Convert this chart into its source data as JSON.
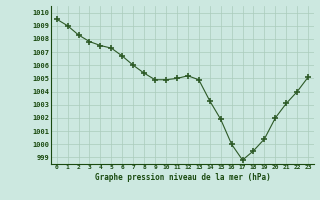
{
  "x": [
    0,
    1,
    2,
    3,
    4,
    5,
    6,
    7,
    8,
    9,
    10,
    11,
    12,
    13,
    14,
    15,
    16,
    17,
    18,
    19,
    20,
    21,
    22,
    23
  ],
  "y": [
    1009.5,
    1009.0,
    1008.3,
    1007.8,
    1007.5,
    1007.3,
    1006.7,
    1006.0,
    1005.4,
    1004.9,
    1004.9,
    1005.0,
    1005.2,
    1004.9,
    1003.3,
    1001.9,
    1000.0,
    998.8,
    999.5,
    1000.4,
    1002.0,
    1003.1,
    1004.0,
    1005.1
  ],
  "line_color": "#2d5a27",
  "marker": "+",
  "marker_size": 4,
  "bg_color": "#cce8e0",
  "grid_color": "#aaccbb",
  "xlabel": "Graphe pression niveau de la mer (hPa)",
  "xlabel_color": "#1a4a10",
  "tick_color": "#1a4a10",
  "ylabel_ticks": [
    999,
    1000,
    1001,
    1002,
    1003,
    1004,
    1005,
    1006,
    1007,
    1008,
    1009,
    1010
  ],
  "ylim": [
    998.5,
    1010.5
  ],
  "xlim": [
    -0.5,
    23.5
  ]
}
